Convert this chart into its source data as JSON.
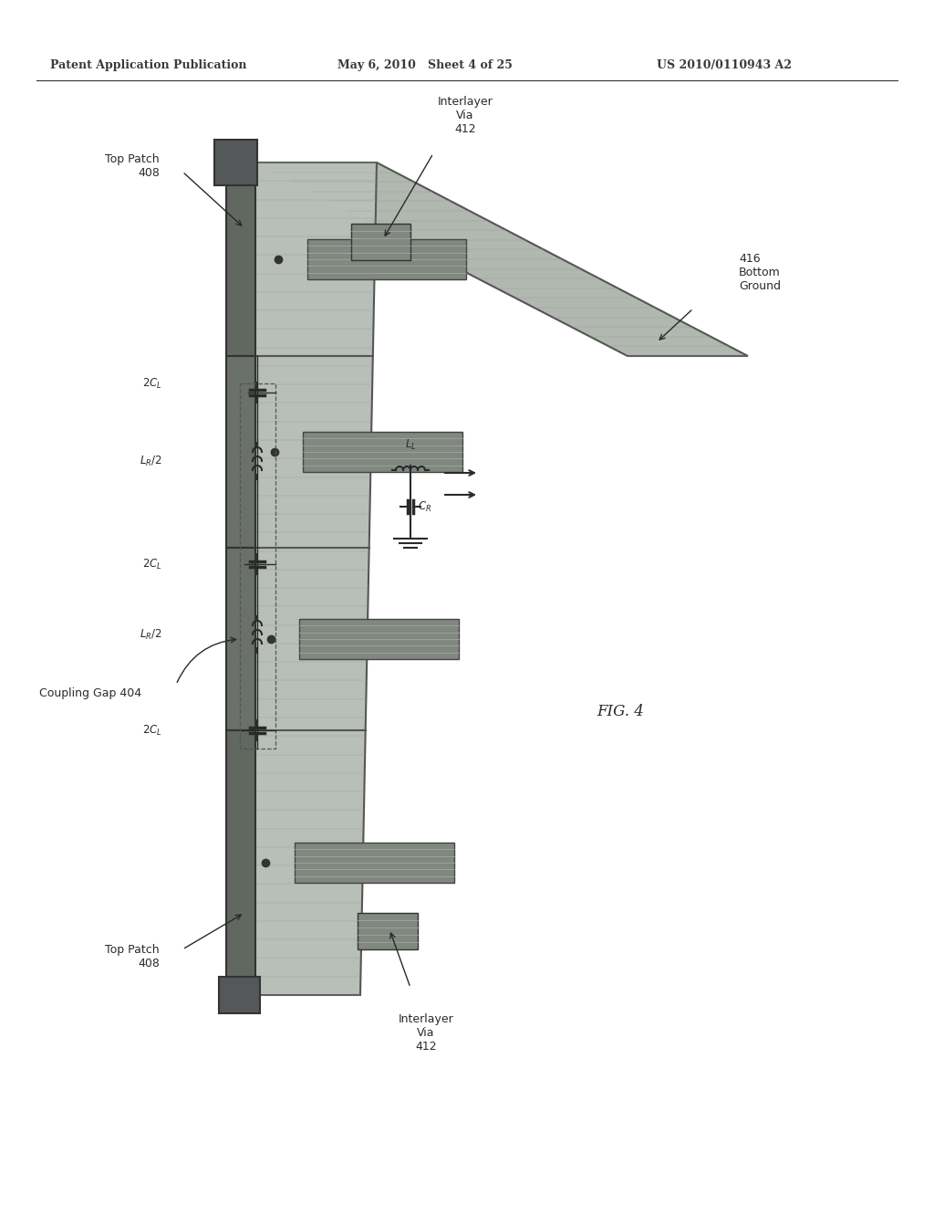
{
  "header_left": "Patent Application Publication",
  "header_mid": "May 6, 2010   Sheet 4 of 25",
  "header_right": "US 2010/0110943 A2",
  "fig_label": "FIG. 4",
  "bg_color": "#ffffff",
  "header_color": "#3a3a3a",
  "slab_color": "#b8bfb8",
  "slab_edge": "#555555",
  "gnd_color": "#b0b8b0",
  "gnd_edge": "#555555",
  "patch_face": "#808880",
  "patch_edge": "#444444",
  "top_patch_face": "#707870",
  "top_patch_edge": "#333333",
  "via_face": "#808880",
  "circuit_color": "#2a2a2a",
  "dot_color": "#333333",
  "line_texture": "#909890",
  "label_color": "#2a2a2a",
  "arrow_color": "#2a2a2a",
  "separator_color": "#333333"
}
